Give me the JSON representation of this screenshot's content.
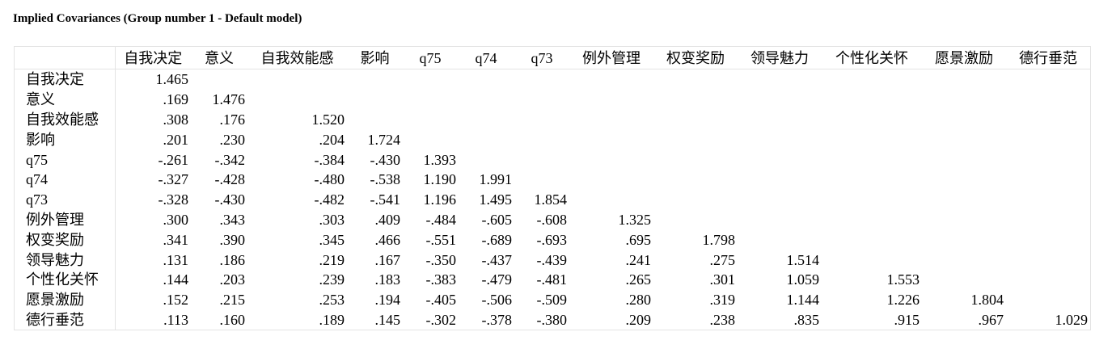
{
  "title": "Implied Covariances (Group number 1 - Default model)",
  "columns": [
    "自我决定",
    "意义",
    "自我效能感",
    "影响",
    "q75",
    "q74",
    "q73",
    "例外管理",
    "权变奖励",
    "领导魅力",
    "个性化关怀",
    "愿景激励",
    "德行垂范"
  ],
  "rows": [
    {
      "label": "自我决定",
      "values": [
        "1.465",
        "",
        "",
        "",
        "",
        "",
        "",
        "",
        "",
        "",
        "",
        "",
        ""
      ]
    },
    {
      "label": "意义",
      "values": [
        ".169",
        "1.476",
        "",
        "",
        "",
        "",
        "",
        "",
        "",
        "",
        "",
        "",
        ""
      ]
    },
    {
      "label": "自我效能感",
      "values": [
        ".308",
        ".176",
        "1.520",
        "",
        "",
        "",
        "",
        "",
        "",
        "",
        "",
        "",
        ""
      ]
    },
    {
      "label": "影响",
      "values": [
        ".201",
        ".230",
        ".204",
        "1.724",
        "",
        "",
        "",
        "",
        "",
        "",
        "",
        "",
        ""
      ]
    },
    {
      "label": "q75",
      "values": [
        "-.261",
        "-.342",
        "-.384",
        "-.430",
        "1.393",
        "",
        "",
        "",
        "",
        "",
        "",
        "",
        ""
      ]
    },
    {
      "label": "q74",
      "values": [
        "-.327",
        "-.428",
        "-.480",
        "-.538",
        "1.190",
        "1.991",
        "",
        "",
        "",
        "",
        "",
        "",
        ""
      ]
    },
    {
      "label": "q73",
      "values": [
        "-.328",
        "-.430",
        "-.482",
        "-.541",
        "1.196",
        "1.495",
        "1.854",
        "",
        "",
        "",
        "",
        "",
        ""
      ]
    },
    {
      "label": "例外管理",
      "values": [
        ".300",
        ".343",
        ".303",
        ".409",
        "-.484",
        "-.605",
        "-.608",
        "1.325",
        "",
        "",
        "",
        "",
        ""
      ]
    },
    {
      "label": "权变奖励",
      "values": [
        ".341",
        ".390",
        ".345",
        ".466",
        "-.551",
        "-.689",
        "-.693",
        ".695",
        "1.798",
        "",
        "",
        "",
        ""
      ]
    },
    {
      "label": "领导魅力",
      "values": [
        ".131",
        ".186",
        ".219",
        ".167",
        "-.350",
        "-.437",
        "-.439",
        ".241",
        ".275",
        "1.514",
        "",
        "",
        ""
      ]
    },
    {
      "label": "个性化关怀",
      "values": [
        ".144",
        ".203",
        ".239",
        ".183",
        "-.383",
        "-.479",
        "-.481",
        ".265",
        ".301",
        "1.059",
        "1.553",
        "",
        ""
      ]
    },
    {
      "label": "愿景激励",
      "values": [
        ".152",
        ".215",
        ".253",
        ".194",
        "-.405",
        "-.506",
        "-.509",
        ".280",
        ".319",
        "1.144",
        "1.226",
        "1.804",
        ""
      ]
    },
    {
      "label": "德行垂范",
      "values": [
        ".113",
        ".160",
        ".189",
        ".145",
        "-.302",
        "-.378",
        "-.380",
        ".209",
        ".238",
        ".835",
        ".915",
        ".967",
        "1.029"
      ]
    }
  ]
}
